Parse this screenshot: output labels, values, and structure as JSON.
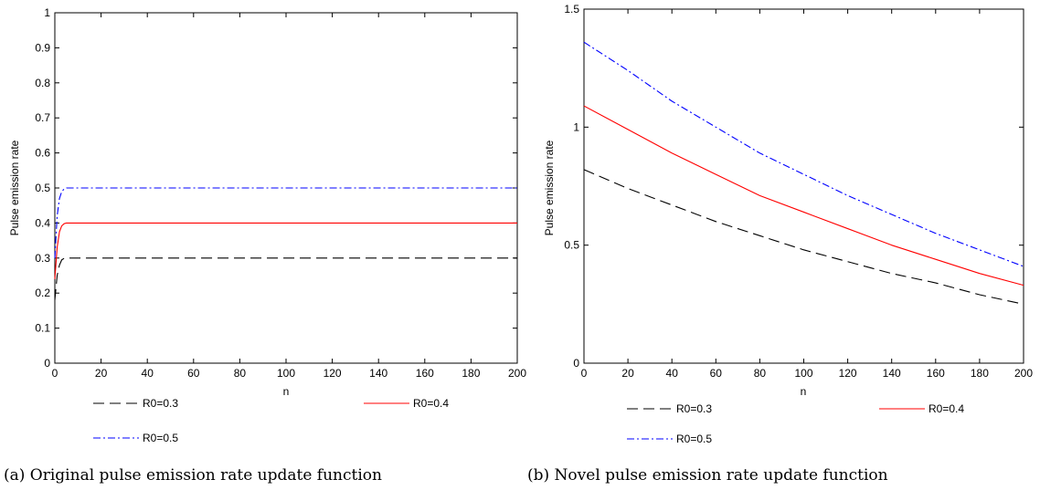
{
  "chart_data": [
    {
      "type": "line",
      "caption": "(a) Original pulse emission rate update function",
      "xlabel": "n",
      "ylabel": "Pulse emission rate",
      "xlim": [
        0,
        200
      ],
      "ylim": [
        0,
        1
      ],
      "xticks": [
        0,
        20,
        40,
        60,
        80,
        100,
        120,
        140,
        160,
        180,
        200
      ],
      "yticks": [
        0,
        0.1,
        0.2,
        0.3,
        0.4,
        0.5,
        0.6,
        0.7,
        0.8,
        0.9,
        1
      ],
      "yticklabels": [
        "0",
        "0.1",
        "0.2",
        "0.3",
        "0.4",
        "0.5",
        "0.6",
        "0.7",
        "0.8",
        "0.9",
        "1"
      ],
      "legend_position": "bottom",
      "series": [
        {
          "name": "R0=0.3",
          "color": "#000000",
          "style": "dashed",
          "x": [
            0,
            1,
            2,
            3,
            4,
            5,
            6,
            8,
            10,
            200
          ],
          "y": [
            0.18,
            0.25,
            0.28,
            0.295,
            0.299,
            0.3,
            0.3,
            0.3,
            0.3,
            0.3
          ]
        },
        {
          "name": "R0=0.4",
          "color": "#ff0000",
          "style": "solid",
          "x": [
            0,
            1,
            2,
            3,
            4,
            5,
            6,
            8,
            10,
            200
          ],
          "y": [
            0.24,
            0.33,
            0.375,
            0.392,
            0.398,
            0.4,
            0.4,
            0.4,
            0.4,
            0.4
          ]
        },
        {
          "name": "R0=0.5",
          "color": "#0000ff",
          "style": "dashdot",
          "x": [
            0,
            1,
            2,
            3,
            4,
            5,
            6,
            8,
            10,
            200
          ],
          "y": [
            0.3,
            0.42,
            0.47,
            0.49,
            0.497,
            0.5,
            0.5,
            0.5,
            0.5,
            0.5
          ]
        }
      ]
    },
    {
      "type": "line",
      "caption": "(b) Novel pulse emission rate update function",
      "xlabel": "n",
      "ylabel": "Pulse emission rate",
      "xlim": [
        0,
        200
      ],
      "ylim": [
        0,
        1.5
      ],
      "xticks": [
        0,
        20,
        40,
        60,
        80,
        100,
        120,
        140,
        160,
        180,
        200
      ],
      "yticks": [
        0,
        0.5,
        1,
        1.5
      ],
      "yticklabels": [
        "0",
        "0.5",
        "1",
        "1.5"
      ],
      "legend_position": "bottom",
      "series": [
        {
          "name": "R0=0.3",
          "color": "#000000",
          "style": "dashed",
          "x": [
            0,
            20,
            40,
            60,
            80,
            100,
            120,
            140,
            160,
            180,
            200
          ],
          "y": [
            0.82,
            0.74,
            0.67,
            0.6,
            0.54,
            0.48,
            0.43,
            0.38,
            0.34,
            0.29,
            0.25
          ]
        },
        {
          "name": "R0=0.4",
          "color": "#ff0000",
          "style": "solid",
          "x": [
            0,
            20,
            40,
            60,
            80,
            100,
            120,
            140,
            160,
            180,
            200
          ],
          "y": [
            1.09,
            0.99,
            0.89,
            0.8,
            0.71,
            0.64,
            0.57,
            0.5,
            0.44,
            0.38,
            0.33
          ]
        },
        {
          "name": "R0=0.5",
          "color": "#0000ff",
          "style": "dashdot",
          "x": [
            0,
            20,
            40,
            60,
            80,
            100,
            120,
            140,
            160,
            180,
            200
          ],
          "y": [
            1.36,
            1.24,
            1.11,
            1.0,
            0.89,
            0.8,
            0.71,
            0.63,
            0.55,
            0.48,
            0.41
          ]
        }
      ]
    }
  ]
}
